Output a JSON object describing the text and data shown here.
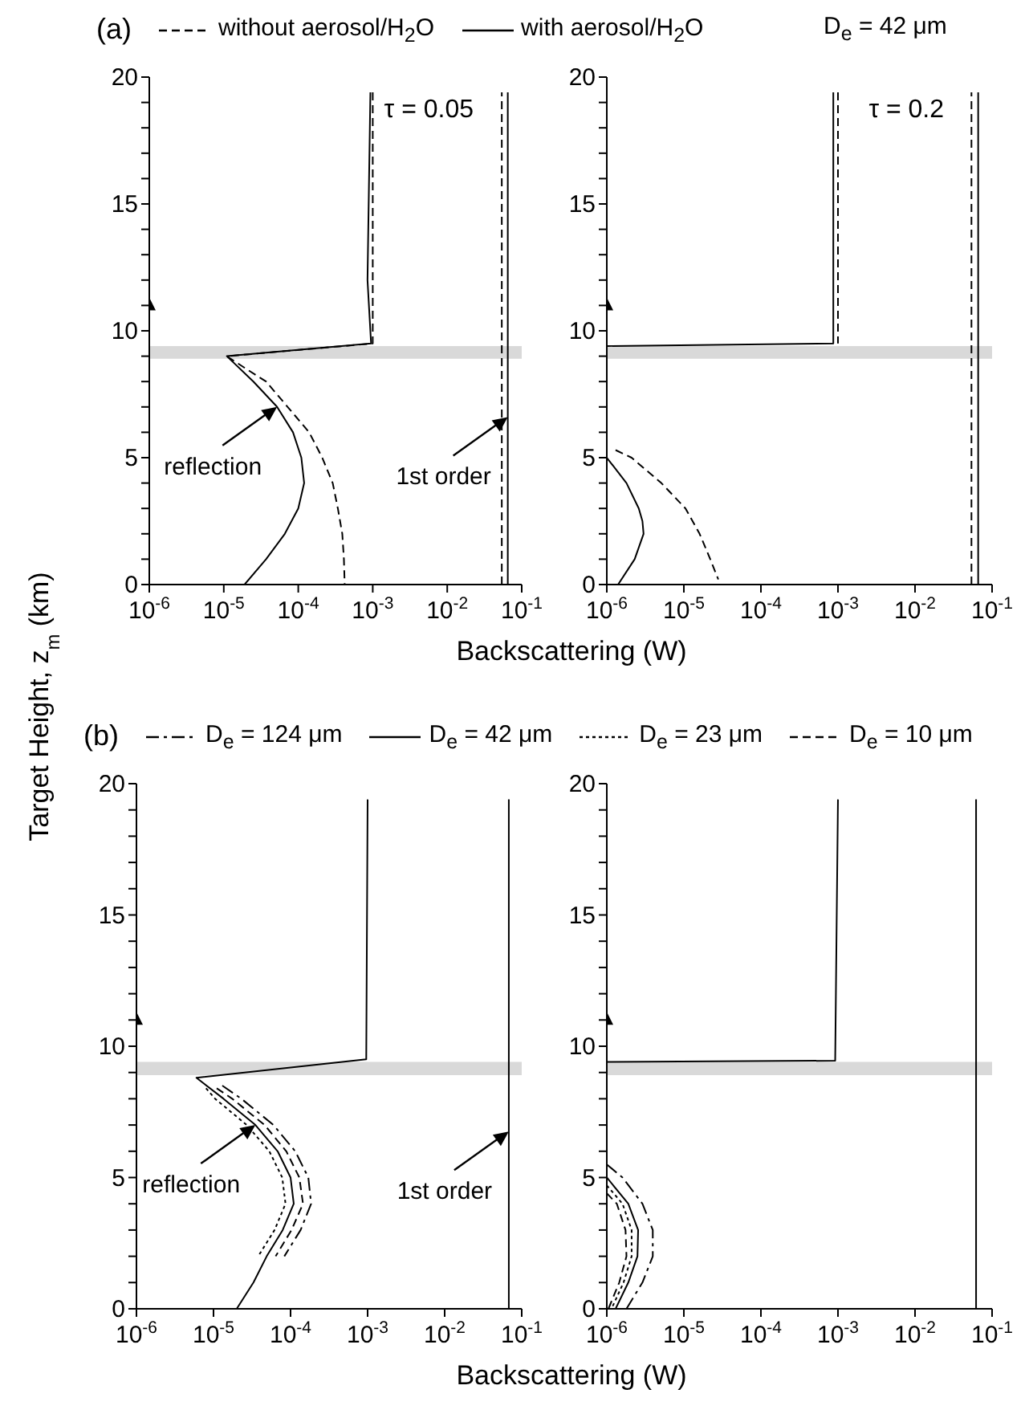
{
  "chart_data": [
    {
      "type": "line",
      "title": "(a)",
      "xlabel": "Backscattering (W)",
      "ylabel": "Target Height, z$_{m}$ (km)",
      "legend": "top",
      "log": "x",
      "xlim": [
        1e-06,
        0.1
      ],
      "xticks": [
        {
          "value": 1e-06,
          "label": "10$^{-6}$"
        },
        {
          "value": 1e-05,
          "label": "10$^{-5}$"
        },
        {
          "value": 0.0001,
          "label": "10$^{-4}$"
        },
        {
          "value": 0.001,
          "label": "10$^{-3}$"
        },
        {
          "value": 0.01,
          "label": "10$^{-2}$"
        },
        {
          "value": 0.1,
          "label": "10$^{-1}$"
        }
      ],
      "ylim": [
        0,
        20
      ],
      "yticks": [
        0,
        {
          "value": 1,
          "label": null
        },
        {
          "value": 2,
          "label": null
        },
        {
          "value": 3,
          "label": null
        },
        {
          "value": 4,
          "label": null
        },
        5,
        {
          "value": 6,
          "label": null
        },
        {
          "value": 7,
          "label": null
        },
        {
          "value": 8,
          "label": null
        },
        {
          "value": 9,
          "label": null
        },
        10,
        {
          "value": 11,
          "label": null
        },
        {
          "value": 12,
          "label": null
        },
        {
          "value": 13,
          "label": null
        },
        {
          "value": 14,
          "label": null
        },
        15,
        {
          "value": 16,
          "label": null
        },
        {
          "value": 17,
          "label": null
        },
        {
          "value": 18,
          "label": null
        },
        {
          "value": 19,
          "label": null
        },
        20
      ],
      "bands": [
        {
          "axis": "y",
          "from": 8.9,
          "to": 9.4,
          "color": "#d9d9d9"
        }
      ],
      "annotations": [
        "τ = 0.05",
        {
          "text": "reflection",
          "x": 5.2e-05,
          "y": 7
        },
        {
          "text": "1st order",
          "x": 0.065,
          "y": 6.6
        }
      ],
      "series": [
        {
          "name": "without aerosol/H$_{2}$O",
          "color": "#000000",
          "line_style": "dashed",
          "x": [
            0.001,
            0.001,
            1.1e-05,
            2e-05,
            3.7e-05,
            7.2e-05,
            0.00014,
            0.00021,
            0.00029,
            0.00034,
            0.00039,
            0.00041,
            0.00042,
            null,
            0.054,
            0.054
          ],
          "values": [
            19.4,
            9.5,
            9.0,
            8.5,
            8,
            7,
            6,
            5,
            4,
            3,
            2,
            1,
            0,
            null,
            0,
            19.4
          ]
        },
        {
          "name": "with aerosol/H$_{2}$O",
          "color": "#000000",
          "line_style": "solid",
          "x": [
            0.00093,
            0.00085,
            0.00095,
            1.1e-05,
            2.5e-05,
            5.2e-05,
            8.5e-05,
            0.00011,
            0.00012,
            0.0001,
            6.6e-05,
            3.7e-05,
            1.9e-05,
            null,
            0.065,
            0.065
          ],
          "values": [
            19.4,
            12,
            9.5,
            9.0,
            8,
            7,
            6,
            5,
            4,
            3,
            2,
            1,
            0,
            null,
            0,
            19.4
          ]
        },
        {
          "type": "scatter",
          "marker": "triangle",
          "color": "#000000",
          "x": [
            1e-06
          ],
          "values": [
            11
          ]
        }
      ]
    },
    {
      "type": "line",
      "title": "D$_{e}$ = 42 μm",
      "log": "x",
      "xlim": [
        1e-06,
        0.1
      ],
      "xticks": [
        {
          "value": 1e-06,
          "label": "10$^{-6}$"
        },
        {
          "value": 1e-05,
          "label": "10$^{-5}$"
        },
        {
          "value": 0.0001,
          "label": "10$^{-4}$"
        },
        {
          "value": 0.001,
          "label": "10$^{-3}$"
        },
        {
          "value": 0.01,
          "label": "10$^{-2}$"
        },
        {
          "value": 0.1,
          "label": "10$^{-1}$"
        }
      ],
      "ylim": [
        0,
        20
      ],
      "yticks": [
        0,
        {
          "value": 1,
          "label": null
        },
        {
          "value": 2,
          "label": null
        },
        {
          "value": 3,
          "label": null
        },
        {
          "value": 4,
          "label": null
        },
        5,
        {
          "value": 6,
          "label": null
        },
        {
          "value": 7,
          "label": null
        },
        {
          "value": 8,
          "label": null
        },
        {
          "value": 9,
          "label": null
        },
        10,
        {
          "value": 11,
          "label": null
        },
        {
          "value": 12,
          "label": null
        },
        {
          "value": 13,
          "label": null
        },
        {
          "value": 14,
          "label": null
        },
        15,
        {
          "value": 16,
          "label": null
        },
        {
          "value": 17,
          "label": null
        },
        {
          "value": 18,
          "label": null
        },
        {
          "value": 19,
          "label": null
        },
        20
      ],
      "bands": [
        {
          "axis": "y",
          "from": 8.9,
          "to": 9.4,
          "color": "#d9d9d9"
        }
      ],
      "annotations": [
        "τ = 0.2"
      ],
      "series": [
        {
          "color": "#000000",
          "line_style": "dashed",
          "x": [
            0.001,
            0.001,
            null,
            1.3e-06,
            2.1e-06,
            5.1e-06,
            1.05e-05,
            1.6e-05,
            2.2e-05,
            2.8e-05,
            null,
            0.054,
            0.054
          ],
          "values": [
            19.4,
            9.5,
            null,
            5.3,
            5,
            4,
            3,
            2,
            1,
            0.2,
            null,
            0,
            19.4
          ]
        },
        {
          "color": "#000000",
          "line_style": "solid",
          "x": [
            0.00087,
            0.00087,
            1e-06,
            null,
            1e-06,
            1.8e-06,
            2.6e-06,
            2.9e-06,
            3e-06,
            2.3e-06,
            1.4e-06,
            null,
            0.066,
            0.066
          ],
          "values": [
            19.4,
            9.5,
            9.4,
            null,
            5.0,
            4,
            3,
            2.5,
            2,
            1,
            0,
            null,
            0,
            19.4
          ]
        },
        {
          "type": "scatter",
          "marker": "triangle",
          "color": "#000000",
          "x": [
            1e-06
          ],
          "values": [
            11
          ]
        }
      ]
    },
    {
      "type": "line",
      "title": "(b)",
      "xlabel": "Backscattering (W)",
      "legend": "top",
      "log": "x",
      "xlim": [
        1e-06,
        0.1
      ],
      "xticks": [
        {
          "value": 1e-06,
          "label": "10$^{-6}$"
        },
        {
          "value": 1e-05,
          "label": "10$^{-5}$"
        },
        {
          "value": 0.0001,
          "label": "10$^{-4}$"
        },
        {
          "value": 0.001,
          "label": "10$^{-3}$"
        },
        {
          "value": 0.01,
          "label": "10$^{-2}$"
        },
        {
          "value": 0.1,
          "label": "10$^{-1}$"
        }
      ],
      "ylim": [
        0,
        20
      ],
      "yticks": [
        0,
        {
          "value": 1,
          "label": null
        },
        {
          "value": 2,
          "label": null
        },
        {
          "value": 3,
          "label": null
        },
        {
          "value": 4,
          "label": null
        },
        5,
        {
          "value": 6,
          "label": null
        },
        {
          "value": 7,
          "label": null
        },
        {
          "value": 8,
          "label": null
        },
        {
          "value": 9,
          "label": null
        },
        10,
        {
          "value": 11,
          "label": null
        },
        {
          "value": 12,
          "label": null
        },
        {
          "value": 13,
          "label": null
        },
        {
          "value": 14,
          "label": null
        },
        15,
        {
          "value": 16,
          "label": null
        },
        {
          "value": 17,
          "label": null
        },
        {
          "value": 18,
          "label": null
        },
        {
          "value": 19,
          "label": null
        },
        20
      ],
      "bands": [
        {
          "axis": "y",
          "from": 8.9,
          "to": 9.4,
          "color": "#d9d9d9"
        }
      ],
      "annotations": [
        {
          "text": "reflection",
          "x": 3.5e-05,
          "y": 7
        },
        {
          "text": "1st order",
          "x": 0.068,
          "y": 6.75
        }
      ],
      "series": [
        {
          "name": "D$_{e}$ = 124 μm",
          "color": "#000000",
          "line_style": "dashdot",
          "x": [
            1.3e-05,
            2.3e-05,
            6e-05,
            0.000115,
            0.00017,
            0.000185,
            0.000135,
            8.3e-05
          ],
          "values": [
            8.5,
            8,
            7,
            6,
            5,
            4,
            3,
            2
          ]
        },
        {
          "name": "D$_{e}$ = 42 μm",
          "color": "#000000",
          "line_style": "solid",
          "x": [
            0.001,
            0.00096,
            6e-06,
            1.35e-05,
            3.5e-05,
            6.8e-05,
            0.0001,
            0.00011,
            7.9e-05,
            4.9e-05,
            3.3e-05,
            2e-05,
            null,
            0.068,
            0.068
          ],
          "values": [
            19.4,
            9.5,
            8.8,
            8,
            7,
            6,
            5,
            4,
            3,
            2,
            1,
            0,
            null,
            0,
            19.4
          ]
        },
        {
          "name": "D$_{e}$ = 23 μm",
          "color": "#000000",
          "line_style": "dotted",
          "x": [
            8e-06,
            1.05e-05,
            2.7e-05,
            5.3e-05,
            7.8e-05,
            8.6e-05,
            6.2e-05,
            3.8e-05
          ],
          "values": [
            8.4,
            8,
            7,
            6,
            5,
            4,
            3,
            2
          ]
        },
        {
          "name": "D$_{e}$ = 10 μm",
          "color": "#000000",
          "line_style": "dashed",
          "x": [
            1.1e-05,
            1.75e-05,
            4.6e-05,
            8.8e-05,
            0.00013,
            0.000145,
            0.000103,
            6.4e-05
          ],
          "values": [
            8.4,
            8,
            7,
            6,
            5,
            4,
            3,
            2
          ]
        },
        {
          "type": "scatter",
          "marker": "triangle",
          "color": "#000000",
          "x": [
            1e-06
          ],
          "values": [
            11
          ]
        }
      ]
    },
    {
      "type": "line",
      "log": "x",
      "xlim": [
        1e-06,
        0.1
      ],
      "xticks": [
        {
          "value": 1e-06,
          "label": "10$^{-6}$"
        },
        {
          "value": 1e-05,
          "label": "10$^{-5}$"
        },
        {
          "value": 0.0001,
          "label": "10$^{-4}$"
        },
        {
          "value": 0.001,
          "label": "10$^{-3}$"
        },
        {
          "value": 0.01,
          "label": "10$^{-2}$"
        },
        {
          "value": 0.1,
          "label": "10$^{-1}$"
        }
      ],
      "ylim": [
        0,
        20
      ],
      "yticks": [
        0,
        {
          "value": 1,
          "label": null
        },
        {
          "value": 2,
          "label": null
        },
        {
          "value": 3,
          "label": null
        },
        {
          "value": 4,
          "label": null
        },
        5,
        {
          "value": 6,
          "label": null
        },
        {
          "value": 7,
          "label": null
        },
        {
          "value": 8,
          "label": null
        },
        {
          "value": 9,
          "label": null
        },
        10,
        {
          "value": 11,
          "label": null
        },
        {
          "value": 12,
          "label": null
        },
        {
          "value": 13,
          "label": null
        },
        {
          "value": 14,
          "label": null
        },
        15,
        {
          "value": 16,
          "label": null
        },
        {
          "value": 17,
          "label": null
        },
        {
          "value": 18,
          "label": null
        },
        {
          "value": 19,
          "label": null
        },
        20
      ],
      "bands": [
        {
          "axis": "y",
          "from": 8.9,
          "to": 9.4,
          "color": "#d9d9d9"
        }
      ],
      "series": [
        {
          "color": "#000000",
          "line_style": "dashdot",
          "x": [
            1e-06,
            1.6e-06,
            2.9e-06,
            3.95e-06,
            3.95e-06,
            2.9e-06,
            1.8e-06
          ],
          "values": [
            5.5,
            5,
            4,
            3,
            2,
            1,
            0
          ]
        },
        {
          "color": "#000000",
          "line_style": "solid",
          "x": [
            0.001,
            0.00092,
            1e-06,
            null,
            1e-06,
            1.9e-06,
            2.55e-06,
            2.5e-06,
            1.9e-06,
            1.3e-06,
            null,
            0.062,
            0.062
          ],
          "values": [
            19.4,
            9.45,
            9.4,
            null,
            5.0,
            4,
            3,
            2,
            1,
            0,
            null,
            0,
            19.4
          ]
        },
        {
          "color": "#000000",
          "line_style": "dotted",
          "x": [
            1e-06,
            1.6e-06,
            2.1e-06,
            2.1e-06,
            1.65e-06,
            1.15e-06
          ],
          "values": [
            4.7,
            4,
            3,
            2,
            1,
            0
          ]
        },
        {
          "color": "#000000",
          "line_style": "dashed",
          "x": [
            1e-06,
            1.35e-06,
            1.75e-06,
            1.8e-06,
            1.45e-06,
            1.05e-06
          ],
          "values": [
            4.4,
            4,
            3,
            2,
            1,
            0
          ]
        },
        {
          "type": "scatter",
          "marker": "triangle",
          "color": "#000000",
          "x": [
            1e-06
          ],
          "values": [
            11
          ]
        }
      ]
    }
  ]
}
